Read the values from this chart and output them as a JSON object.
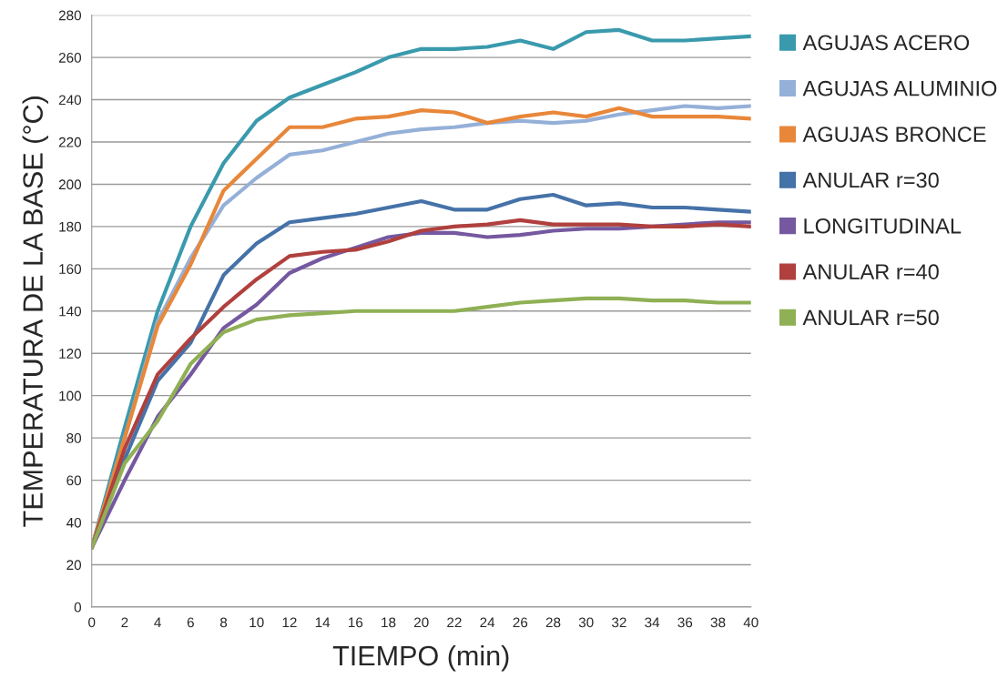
{
  "chart_data": {
    "type": "line",
    "xlabel": "TIEMPO (min)",
    "ylabel": "TEMPERATURA DE LA BASE (°C)",
    "x": [
      0,
      2,
      4,
      6,
      8,
      10,
      12,
      14,
      16,
      18,
      20,
      22,
      24,
      26,
      28,
      30,
      32,
      34,
      36,
      38,
      40
    ],
    "xlim": [
      0,
      40
    ],
    "xticks": [
      0,
      2,
      4,
      6,
      8,
      10,
      12,
      14,
      16,
      18,
      20,
      22,
      24,
      26,
      28,
      30,
      32,
      34,
      36,
      38,
      40
    ],
    "ylim": [
      0,
      280
    ],
    "yticks": [
      0,
      20,
      40,
      60,
      80,
      100,
      120,
      140,
      160,
      180,
      200,
      220,
      240,
      260,
      280
    ],
    "grid": "y",
    "legend": "right",
    "marker": "none",
    "line_style": "solid",
    "series": [
      {
        "name": "AGUJAS ACERO",
        "color": "#3a9aad",
        "values": [
          28,
          85,
          140,
          180,
          210,
          230,
          241,
          247,
          253,
          260,
          264,
          264,
          265,
          268,
          264,
          272,
          273,
          268,
          268,
          269,
          270
        ]
      },
      {
        "name": "AGUJAS ALUMINIO",
        "color": "#95b0d8",
        "values": [
          28,
          80,
          135,
          165,
          190,
          203,
          214,
          216,
          220,
          224,
          226,
          227,
          229,
          230,
          229,
          230,
          233,
          235,
          237,
          236,
          237
        ]
      },
      {
        "name": "AGUJAS BRONCE",
        "color": "#e8873a",
        "values": [
          28,
          80,
          133,
          162,
          197,
          212,
          227,
          227,
          231,
          232,
          235,
          234,
          229,
          232,
          234,
          232,
          236,
          232,
          232,
          232,
          231
        ]
      },
      {
        "name": "ANULAR r=30",
        "color": "#4572a8",
        "values": [
          28,
          70,
          107,
          125,
          157,
          172,
          182,
          184,
          186,
          189,
          192,
          188,
          188,
          193,
          195,
          190,
          191,
          189,
          189,
          188,
          187
        ]
      },
      {
        "name": "LONGITUDINAL",
        "color": "#7558a0",
        "values": [
          28,
          60,
          90,
          110,
          132,
          143,
          158,
          165,
          170,
          175,
          177,
          177,
          175,
          176,
          178,
          179,
          179,
          180,
          181,
          182,
          182
        ]
      },
      {
        "name": "ANULAR r=40",
        "color": "#b0403e",
        "values": [
          28,
          75,
          110,
          127,
          142,
          155,
          166,
          168,
          169,
          173,
          178,
          180,
          181,
          183,
          181,
          181,
          181,
          180,
          180,
          181,
          180
        ]
      },
      {
        "name": "ANULAR r=50",
        "color": "#8fb054",
        "values": [
          28,
          68,
          88,
          115,
          130,
          136,
          138,
          139,
          140,
          140,
          140,
          140,
          142,
          144,
          145,
          146,
          146,
          145,
          145,
          144,
          144
        ]
      }
    ]
  }
}
